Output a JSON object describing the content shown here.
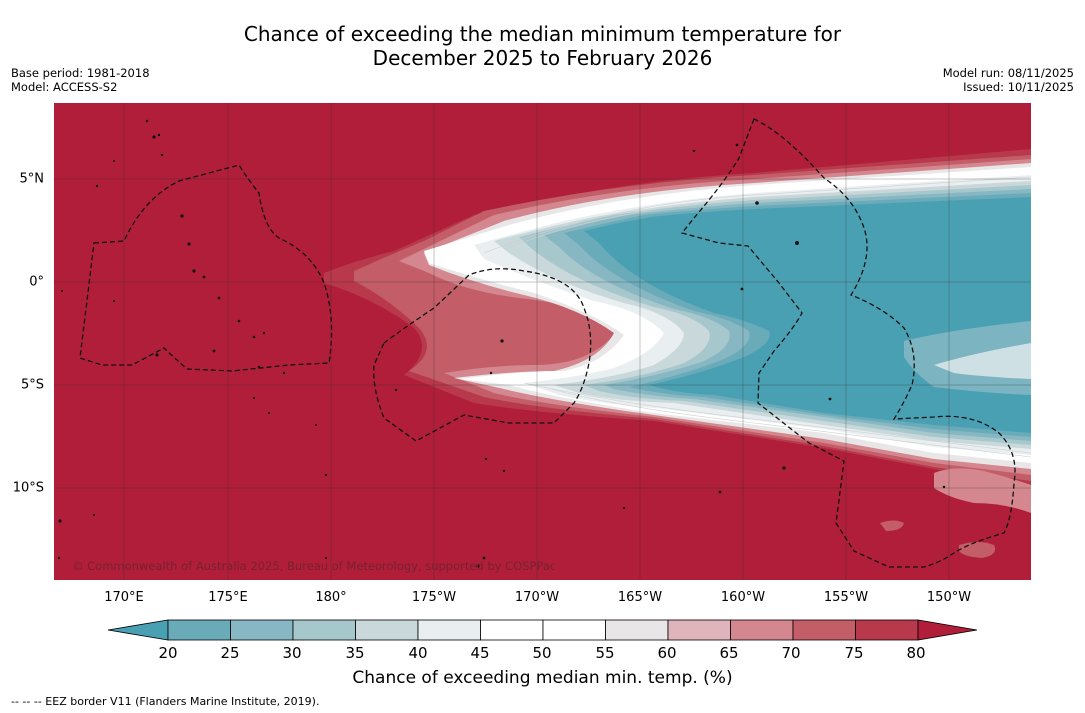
{
  "title": {
    "line1": "Chance of exceeding the median minimum temperature for",
    "line2": "December 2025 to February 2026"
  },
  "meta_left": {
    "base_period": "Base period: 1981-2018",
    "model": "Model: ACCESS-S2"
  },
  "meta_right": {
    "model_run": "Model run: 08/11/2025",
    "issued": "Issued: 10/11/2025"
  },
  "map": {
    "copyright": "© Commonwealth of Australia 2025, Bureau of Meteorology, supported by COSPPac",
    "lon_labels": [
      "170°E",
      "175°E",
      "180°",
      "175°W",
      "170°W",
      "165°W",
      "160°W",
      "155°W",
      "150°W"
    ],
    "lat_labels": [
      "5°N",
      "0°",
      "5°S",
      "10°S"
    ]
  },
  "colorbar": {
    "ticks": [
      "20",
      "25",
      "30",
      "35",
      "40",
      "45",
      "50",
      "55",
      "60",
      "65",
      "70",
      "75",
      "80"
    ],
    "colors": [
      "#4aa0b3",
      "#6aabb9",
      "#86b7c3",
      "#a6c7cc",
      "#c9d8db",
      "#e9eef0",
      "#ffffff",
      "#ffffff",
      "#e8e6e7",
      "#dfb4ba",
      "#d4878f",
      "#c35d68",
      "#b8394b",
      "#b01e3a"
    ],
    "title": "Chance of exceeding median min. temp. (%)"
  },
  "footnote": "--  --  -- EEZ border V11 (Flanders Marine Institute, 2019)."
}
